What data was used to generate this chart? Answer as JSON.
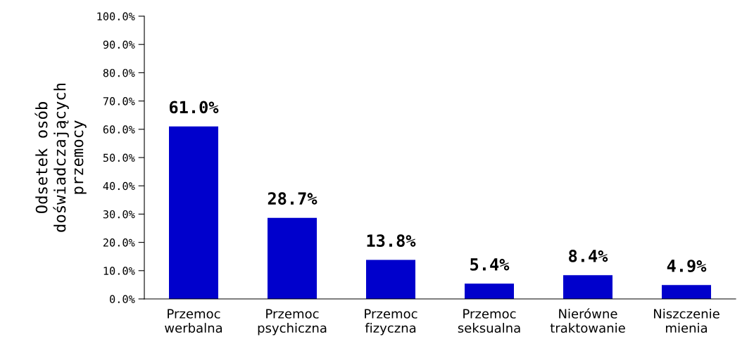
{
  "chart_data": {
    "type": "bar",
    "ylabel": "Odsetek osób\ndoświadczających\nprzemocy",
    "categories": [
      "Przemoc\nwerbalna",
      "Przemoc\npsychiczna",
      "Przemoc\nfizyczna",
      "Przemoc\nseksualna",
      "Nierówne\ntraktowanie",
      "Niszczenie\nmienia"
    ],
    "values": [
      61.0,
      28.7,
      13.8,
      5.4,
      8.4,
      4.9
    ],
    "value_labels": [
      "61.0%",
      "28.7%",
      "13.8%",
      "5.4%",
      "8.4%",
      "4.9%"
    ],
    "color": "#0000cc",
    "ylim": [
      0,
      100
    ],
    "yticks": [
      {
        "value": 0,
        "label": "0.0%"
      },
      {
        "value": 10,
        "label": "10.0%"
      },
      {
        "value": 20,
        "label": "20.0%"
      },
      {
        "value": 30,
        "label": "30.0%"
      },
      {
        "value": 40,
        "label": "40.0%"
      },
      {
        "value": 50,
        "label": "50.0%"
      },
      {
        "value": 60,
        "label": "60.0%"
      },
      {
        "value": 70,
        "label": "70.0%"
      },
      {
        "value": 80,
        "label": "80.0%"
      },
      {
        "value": 90,
        "label": "90.0%"
      },
      {
        "value": 100,
        "label": "100.0%"
      }
    ],
    "grid": false,
    "legend": false
  }
}
